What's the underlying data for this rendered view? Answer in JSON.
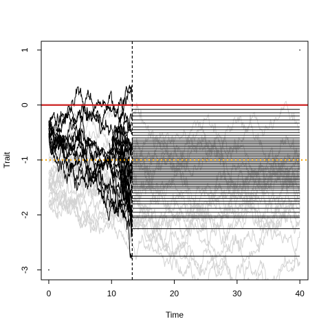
{
  "chart_data": {
    "type": "line",
    "title": "",
    "xlabel": "Time",
    "ylabel": "Trait",
    "xlim": [
      -1.2,
      41.3
    ],
    "ylim": [
      -3.18,
      1.16
    ],
    "x_ticks": [
      0,
      10,
      20,
      30,
      40
    ],
    "y_ticks": [
      1,
      0,
      -1,
      -2,
      -3
    ],
    "grid": false,
    "legend": "none",
    "reference_lines": [
      {
        "orientation": "horizontal",
        "value": 0,
        "style": "solid",
        "color": "#cc1f1f"
      },
      {
        "orientation": "horizontal",
        "value": -1,
        "style": "dotted",
        "color": "#f5a300"
      },
      {
        "orientation": "vertical",
        "value": 13.3,
        "style": "dashed",
        "color": "#000000"
      }
    ],
    "background_paths": {
      "color": "#d3d3d3",
      "count": 18,
      "x_range": [
        0,
        40
      ]
    },
    "foreground_paths": {
      "color": "#000000",
      "count": 12,
      "x_range": [
        0,
        13.3
      ]
    },
    "horizontal_lines": {
      "color": "#000000",
      "x_range": [
        13.3,
        40
      ],
      "y_values": [
        -0.08,
        -0.14,
        -0.2,
        -0.27,
        -0.33,
        -0.4,
        -0.45,
        -0.5,
        -0.55,
        -0.6,
        -0.64,
        -0.67,
        -0.7,
        -0.73,
        -0.76,
        -0.79,
        -0.82,
        -0.85,
        -0.88,
        -0.91,
        -0.94,
        -0.97,
        -1.0,
        -1.03,
        -1.06,
        -1.09,
        -1.12,
        -1.15,
        -1.18,
        -1.21,
        -1.24,
        -1.27,
        -1.3,
        -1.33,
        -1.36,
        -1.39,
        -1.42,
        -1.45,
        -1.48,
        -1.51,
        -1.55,
        -1.6,
        -1.65,
        -1.7,
        -1.75,
        -1.8,
        -1.88,
        -1.95,
        -2.02,
        -2.05,
        -2.25,
        -2.75
      ]
    },
    "point_markers": [
      [
        40,
        1.0
      ],
      [
        0,
        -3.0
      ]
    ]
  }
}
